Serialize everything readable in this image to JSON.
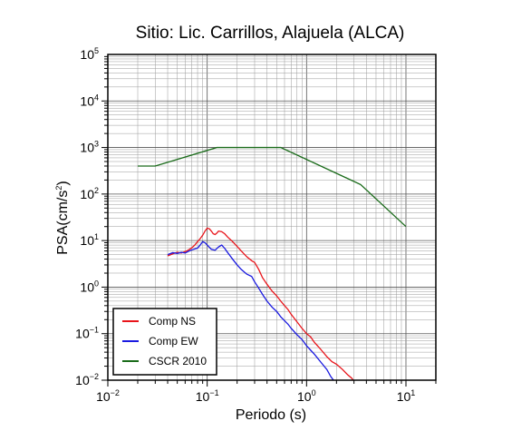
{
  "chart_data": {
    "type": "line",
    "title": "Sitio: Lic. Carrillos, Alajuela (ALCA)",
    "xlabel": "Periodo (s)",
    "ylabel": "PSA(cm/s²)",
    "ylabel_parts": {
      "main": "PSA(cm/s",
      "sup": "2",
      "end": ")"
    },
    "xscale": "log",
    "yscale": "log",
    "xlim": [
      0.01,
      20
    ],
    "ylim": [
      0.01,
      100000
    ],
    "grid": true,
    "legend_position": "bottom-left",
    "x_ticks": [
      {
        "base": "10",
        "exp": "−2",
        "value": 0.01
      },
      {
        "base": "10",
        "exp": "−1",
        "value": 0.1
      },
      {
        "base": "10",
        "exp": "0",
        "value": 1
      },
      {
        "base": "10",
        "exp": "1",
        "value": 10
      }
    ],
    "y_ticks": [
      {
        "base": "10",
        "exp": "−2",
        "value": 0.01
      },
      {
        "base": "10",
        "exp": "−1",
        "value": 0.1
      },
      {
        "base": "10",
        "exp": "0",
        "value": 1
      },
      {
        "base": "10",
        "exp": "1",
        "value": 10
      },
      {
        "base": "10",
        "exp": "2",
        "value": 100
      },
      {
        "base": "10",
        "exp": "3",
        "value": 1000
      },
      {
        "base": "10",
        "exp": "4",
        "value": 10000
      },
      {
        "base": "10",
        "exp": "5",
        "value": 100000
      }
    ],
    "series": [
      {
        "name": "Comp NS",
        "color": "#e8141a",
        "points": [
          [
            0.04,
            4.7
          ],
          [
            0.045,
            5.2
          ],
          [
            0.05,
            5.6
          ],
          [
            0.055,
            5.4
          ],
          [
            0.06,
            5.8
          ],
          [
            0.065,
            6.3
          ],
          [
            0.07,
            7.0
          ],
          [
            0.075,
            8.0
          ],
          [
            0.08,
            9.5
          ],
          [
            0.085,
            11.0
          ],
          [
            0.09,
            13.0
          ],
          [
            0.095,
            16.0
          ],
          [
            0.1,
            18.5
          ],
          [
            0.105,
            18.0
          ],
          [
            0.11,
            16.0
          ],
          [
            0.115,
            14.0
          ],
          [
            0.12,
            13.5
          ],
          [
            0.125,
            14.5
          ],
          [
            0.13,
            16.0
          ],
          [
            0.14,
            15.5
          ],
          [
            0.15,
            14.0
          ],
          [
            0.16,
            12.0
          ],
          [
            0.18,
            9.5
          ],
          [
            0.2,
            7.5
          ],
          [
            0.22,
            6.0
          ],
          [
            0.25,
            4.5
          ],
          [
            0.28,
            3.7
          ],
          [
            0.3,
            3.4
          ],
          [
            0.33,
            2.4
          ],
          [
            0.36,
            1.6
          ],
          [
            0.4,
            1.15
          ],
          [
            0.45,
            0.82
          ],
          [
            0.5,
            0.65
          ],
          [
            0.55,
            0.5
          ],
          [
            0.6,
            0.4
          ],
          [
            0.65,
            0.33
          ],
          [
            0.7,
            0.26
          ],
          [
            0.8,
            0.18
          ],
          [
            0.9,
            0.13
          ],
          [
            1.0,
            0.1
          ],
          [
            1.1,
            0.085
          ],
          [
            1.2,
            0.065
          ],
          [
            1.4,
            0.045
          ],
          [
            1.6,
            0.032
          ],
          [
            1.8,
            0.025
          ],
          [
            2.0,
            0.022
          ],
          [
            2.3,
            0.017
          ],
          [
            2.6,
            0.013
          ],
          [
            2.85,
            0.011
          ],
          [
            3.0,
            0.0095
          ]
        ]
      },
      {
        "name": "Comp EW",
        "color": "#1a1ae0",
        "points": [
          [
            0.04,
            5.0
          ],
          [
            0.045,
            5.5
          ],
          [
            0.05,
            5.3
          ],
          [
            0.055,
            5.6
          ],
          [
            0.06,
            5.4
          ],
          [
            0.065,
            5.9
          ],
          [
            0.07,
            6.3
          ],
          [
            0.075,
            6.6
          ],
          [
            0.08,
            6.9
          ],
          [
            0.085,
            8.0
          ],
          [
            0.09,
            9.5
          ],
          [
            0.095,
            9.0
          ],
          [
            0.1,
            8.0
          ],
          [
            0.11,
            6.5
          ],
          [
            0.12,
            6.2
          ],
          [
            0.13,
            7.3
          ],
          [
            0.14,
            8.0
          ],
          [
            0.15,
            6.8
          ],
          [
            0.16,
            5.6
          ],
          [
            0.18,
            4.0
          ],
          [
            0.2,
            3.0
          ],
          [
            0.22,
            2.4
          ],
          [
            0.25,
            1.9
          ],
          [
            0.28,
            1.7
          ],
          [
            0.3,
            1.3
          ],
          [
            0.33,
            0.95
          ],
          [
            0.36,
            0.7
          ],
          [
            0.4,
            0.5
          ],
          [
            0.45,
            0.37
          ],
          [
            0.5,
            0.3
          ],
          [
            0.55,
            0.23
          ],
          [
            0.6,
            0.19
          ],
          [
            0.65,
            0.16
          ],
          [
            0.7,
            0.13
          ],
          [
            0.8,
            0.095
          ],
          [
            0.9,
            0.075
          ],
          [
            1.0,
            0.055
          ],
          [
            1.1,
            0.044
          ],
          [
            1.2,
            0.036
          ],
          [
            1.4,
            0.024
          ],
          [
            1.6,
            0.017
          ],
          [
            1.75,
            0.012
          ],
          [
            1.9,
            0.0095
          ]
        ]
      },
      {
        "name": "CSCR 2010",
        "color": "#1a6b1a",
        "points": [
          [
            0.02,
            400
          ],
          [
            0.03,
            400
          ],
          [
            0.125,
            1000
          ],
          [
            0.55,
            1000
          ],
          [
            3.5,
            160
          ],
          [
            10,
            20
          ]
        ]
      }
    ]
  }
}
